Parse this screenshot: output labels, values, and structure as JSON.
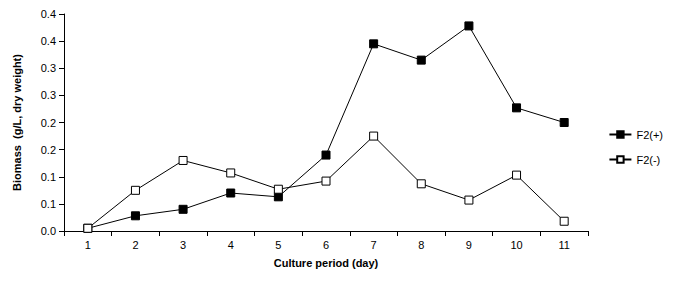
{
  "chart_data": {
    "type": "line",
    "x_label": "Culture period (day)",
    "y_label": "Biomass  (g/L, dry weight)",
    "categories": [
      "1",
      "2",
      "3",
      "4",
      "5",
      "6",
      "7",
      "8",
      "9",
      "10",
      "11"
    ],
    "series": [
      {
        "name": "F2(+)",
        "color": "#000000",
        "marker": "square",
        "values": [
          0.005,
          0.028,
          0.04,
          0.07,
          0.063,
          0.14,
          0.345,
          0.315,
          0.378,
          0.227,
          0.2
        ]
      },
      {
        "name": "F2(-)",
        "color": "#000000",
        "marker": "hollow-square",
        "values": [
          0.005,
          0.075,
          0.13,
          0.107,
          0.077,
          0.092,
          0.175,
          0.087,
          0.057,
          0.103,
          0.018
        ]
      }
    ],
    "ylim": [
      0,
      0.4
    ],
    "yticks": [
      {
        "value": 0,
        "label": "0.0"
      },
      {
        "value": 0.05,
        "label": "0.1"
      },
      {
        "value": 0.1,
        "label": "0.1"
      },
      {
        "value": 0.15,
        "label": "0.2"
      },
      {
        "value": 0.2,
        "label": "0.2"
      },
      {
        "value": 0.25,
        "label": "0.3"
      },
      {
        "value": 0.3,
        "label": "0.3"
      },
      {
        "value": 0.35,
        "label": "0.4"
      },
      {
        "value": 0.4,
        "label": "0.4"
      }
    ],
    "grid": false,
    "legend": "right"
  }
}
